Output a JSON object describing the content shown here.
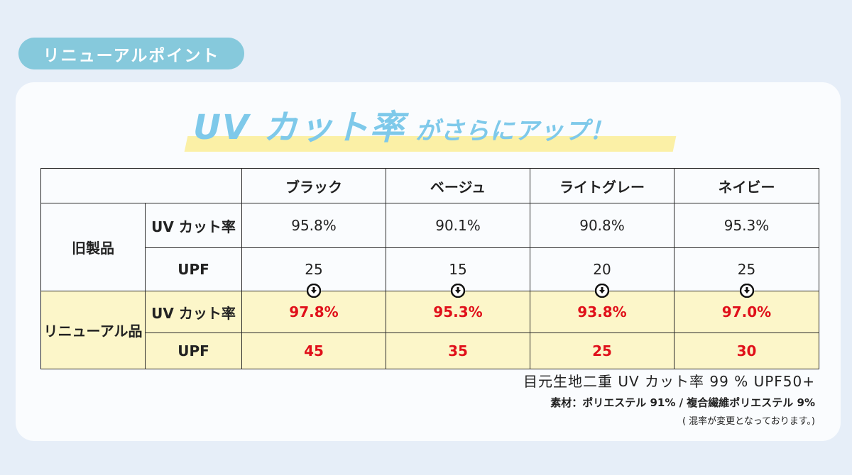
{
  "badge": "リニューアルポイント",
  "headline": {
    "big": "UV カット率",
    "small": "がさらにアップ！"
  },
  "table": {
    "colors": [
      "ブラック",
      "ベージュ",
      "ライトグレー",
      "ネイビー"
    ],
    "old": {
      "label": "旧製品",
      "uv_label": "UV カット率",
      "uv": [
        "95.8%",
        "90.1%",
        "90.8%",
        "95.3%"
      ],
      "upf_label": "UPF",
      "upf": [
        "25",
        "15",
        "20",
        "25"
      ]
    },
    "new": {
      "label": "リニューアル品",
      "uv_label": "UV カット率",
      "uv": [
        "97.8%",
        "95.3%",
        "93.8%",
        "97.0%"
      ],
      "upf_label": "UPF",
      "upf": [
        "45",
        "35",
        "25",
        "30"
      ]
    }
  },
  "notes": {
    "line1": "目元生地二重 UV カット率 99 %  UPF50+",
    "line2": "素材：ポリエステル 91% / 複合繊維ポリエステル 9%",
    "line3": "( 混率が変更となっております。)"
  },
  "colors": {
    "accent_blue": "#7ec9ea",
    "badge": "#86c9dc",
    "highlight_yellow": "#fcf6c9",
    "new_value_red": "#e0101a"
  }
}
